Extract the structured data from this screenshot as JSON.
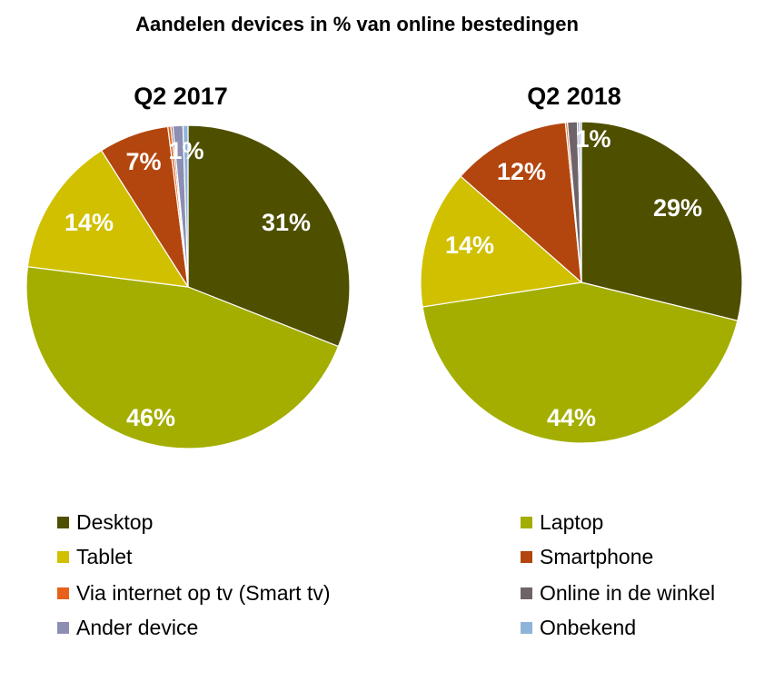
{
  "chart_data": {
    "type": "pie",
    "title": "Aandelen devices in % van online bestedingen",
    "categories": [
      "Desktop",
      "Laptop",
      "Tablet",
      "Smartphone",
      "Via internet op tv (Smart tv)",
      "Online in de winkel",
      "Ander device",
      "Onbekend"
    ],
    "colors": [
      "#4F4F00",
      "#A3AE00",
      "#D1C000",
      "#B3450E",
      "#E8611B",
      "#6E6368",
      "#8C8FB3",
      "#8EB4DA"
    ],
    "series": [
      {
        "name": "Q2 2017",
        "values": [
          31,
          46,
          14,
          7,
          0.3,
          0.2,
          1,
          0.5
        ],
        "labels": [
          "31%",
          "46%",
          "14%",
          "7%",
          "",
          "",
          "1%",
          ""
        ]
      },
      {
        "name": "Q2 2018",
        "values": [
          29,
          44,
          14,
          12,
          0.2,
          1,
          0.2,
          0.2
        ],
        "labels": [
          "29%",
          "44%",
          "14%",
          "12%",
          "",
          "1%",
          "",
          ""
        ]
      }
    ],
    "legend_position": "bottom"
  }
}
